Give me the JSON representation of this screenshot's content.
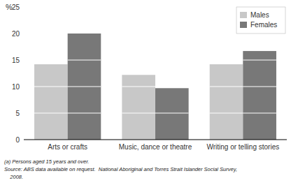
{
  "chart_data": {
    "type": "bar",
    "categories": [
      "Arts or crafts",
      "Music, dance or theatre",
      "Writing or telling stories"
    ],
    "series": [
      {
        "name": "Males",
        "color": "#c8c8c8",
        "values": [
          14.2,
          12.2,
          14.2
        ]
      },
      {
        "name": "Females",
        "color": "#787878",
        "values": [
          20.0,
          9.7,
          16.7
        ]
      }
    ],
    "ylim": [
      0,
      25
    ],
    "yticks": [
      0,
      5,
      10,
      15,
      20,
      25
    ],
    "y_label": "%",
    "legend": "upper right",
    "annotations": [
      "(a) Persons aged 15 years and over.",
      "Source: ABS data available on request.  National Aboriginal and Torres Strait Islander Social Survey,",
      "    2008."
    ]
  }
}
